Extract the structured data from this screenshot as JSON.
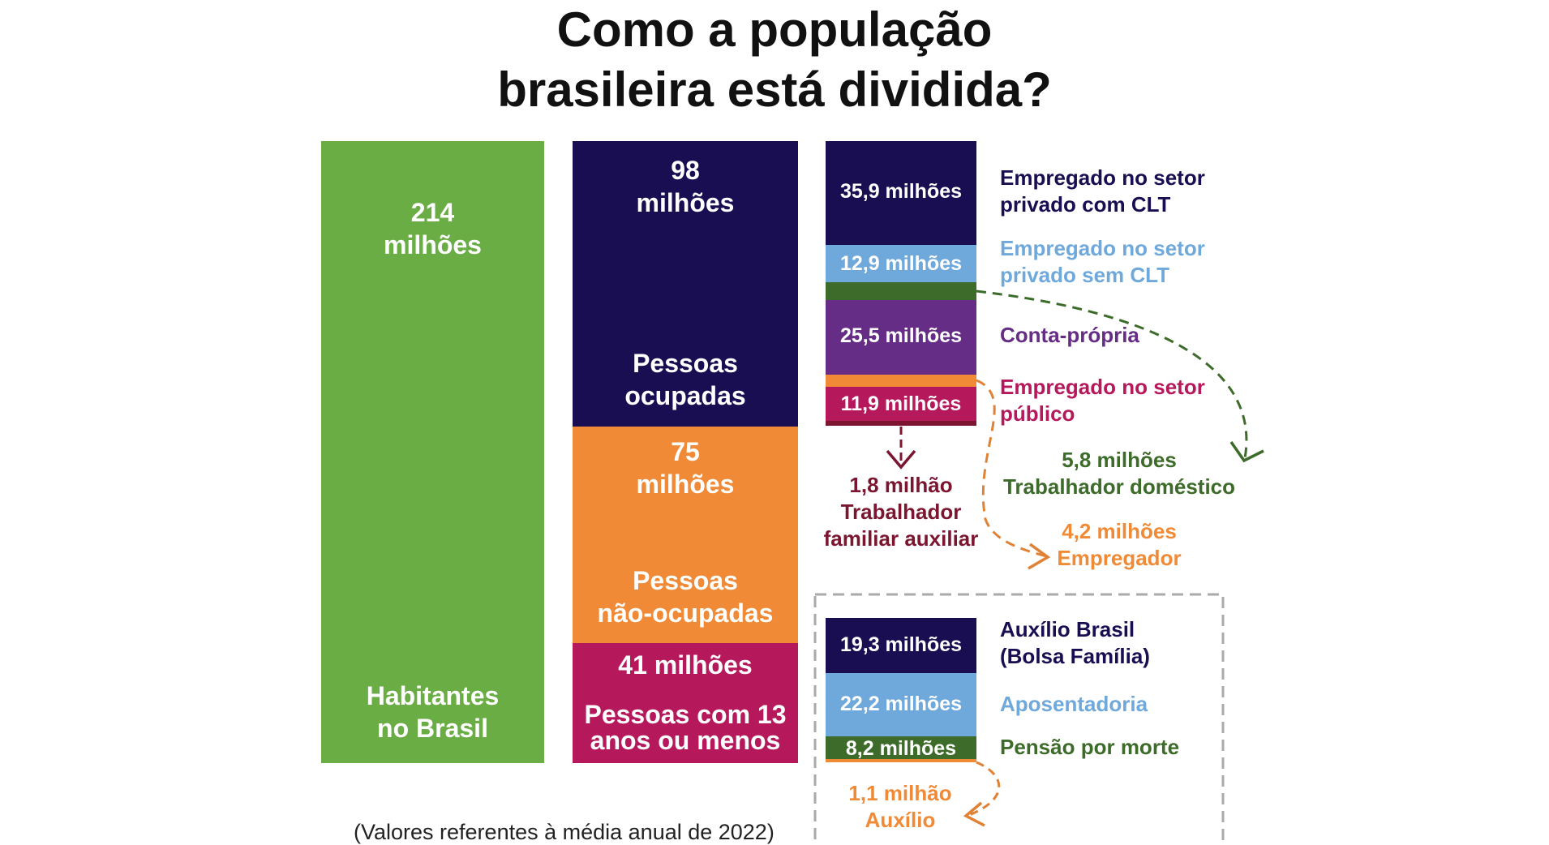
{
  "title_line1": "Como a população",
  "title_line2": "brasileira está dividida?",
  "colors": {
    "green": "#6aad45",
    "navy": "#1a0e52",
    "orange": "#f08a36",
    "magenta": "#b5195c",
    "lightblue": "#6fa9dc",
    "darkgreen": "#3d6b2a",
    "purple": "#662d86",
    "maroon": "#7b1530"
  },
  "col1": {
    "value": "214",
    "unit": "milhões",
    "label1": "Habitantes",
    "label2": "no Brasil"
  },
  "col2": {
    "occupied": {
      "value": "98",
      "unit": "milhões",
      "label1": "Pessoas",
      "label2": "ocupadas"
    },
    "unoccupied": {
      "value": "75",
      "unit": "milhões",
      "label1": "Pessoas",
      "label2": "não-ocupadas"
    },
    "children": {
      "value": "41 milhões",
      "label1": "Pessoas com 13",
      "label2": "anos ou menos"
    }
  },
  "col3": {
    "clt": {
      "value": "35,9 milhões",
      "label1": "Empregado no setor",
      "label2": "privado com CLT"
    },
    "no_clt": {
      "value": "12,9 milhões",
      "label1": "Empregado no setor",
      "label2": "privado sem CLT"
    },
    "own": {
      "value": "25,5 milhões",
      "label1": "Conta-própria"
    },
    "public": {
      "value": "11,9 milhões",
      "label1": "Empregado no setor",
      "label2": "público"
    },
    "domestic": {
      "value": "5,8 milhões",
      "label": "Trabalhador doméstico"
    },
    "family": {
      "value": "1,8 milhão",
      "label1": "Trabalhador",
      "label2": "familiar auxiliar"
    },
    "employer": {
      "value": "4,2 milhões",
      "label": "Empregador"
    }
  },
  "benefits": {
    "bolsa": {
      "value": "19,3 milhões",
      "label1": "Auxílio Brasil",
      "label2": "(Bolsa Família)"
    },
    "retire": {
      "value": "22,2 milhões",
      "label": "Aposentadoria"
    },
    "pension": {
      "value": "8,2 milhões",
      "label": "Pensão por morte"
    },
    "aux": {
      "value": "1,1 milhão",
      "label": "Auxílio"
    }
  },
  "note": "(Valores referentes à média anual de 2022)",
  "chart_data": {
    "type": "bar",
    "title": "Como a população brasileira está dividida?",
    "unit": "milhões",
    "columns": [
      {
        "segments": [
          {
            "name": "Habitantes no Brasil",
            "value": 214
          }
        ]
      },
      {
        "segments": [
          {
            "name": "Pessoas ocupadas",
            "value": 98
          },
          {
            "name": "Pessoas não-ocupadas",
            "value": 75
          },
          {
            "name": "Pessoas com 13 anos ou menos",
            "value": 41
          }
        ]
      },
      {
        "segments": [
          {
            "name": "Empregado no setor privado com CLT",
            "value": 35.9
          },
          {
            "name": "Empregado no setor privado sem CLT",
            "value": 12.9
          },
          {
            "name": "Trabalhador doméstico",
            "value": 5.8
          },
          {
            "name": "Conta-própria",
            "value": 25.5
          },
          {
            "name": "Empregador",
            "value": 4.2
          },
          {
            "name": "Empregado no setor público",
            "value": 11.9
          },
          {
            "name": "Trabalhador familiar auxiliar",
            "value": 1.8
          }
        ]
      },
      {
        "segments": [
          {
            "name": "Auxílio Brasil (Bolsa Família)",
            "value": 19.3
          },
          {
            "name": "Aposentadoria",
            "value": 22.2
          },
          {
            "name": "Pensão por morte",
            "value": 8.2
          },
          {
            "name": "Auxílio",
            "value": 1.1
          }
        ]
      }
    ],
    "note": "(Valores referentes à média anual de 2022)"
  }
}
